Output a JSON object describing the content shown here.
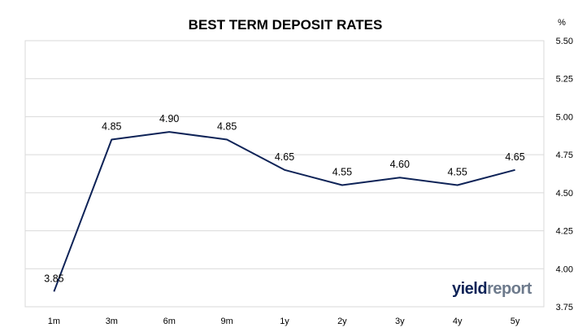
{
  "chart_data": {
    "type": "line",
    "title": "BEST TERM DEPOSIT RATES",
    "unit_label": "%",
    "categories": [
      "1m",
      "3m",
      "6m",
      "9m",
      "1y",
      "2y",
      "3y",
      "4y",
      "5y"
    ],
    "values": [
      3.85,
      4.85,
      4.9,
      4.85,
      4.65,
      4.55,
      4.6,
      4.55,
      4.65
    ],
    "data_labels": [
      "3.85",
      "4.85",
      "4.90",
      "4.85",
      "4.65",
      "4.55",
      "4.60",
      "4.55",
      "4.65"
    ],
    "y_ticks": [
      "5.50",
      "5.25",
      "5.00",
      "4.75",
      "4.50",
      "4.25",
      "4.00",
      "3.75"
    ],
    "y_tick_values": [
      5.5,
      5.25,
      5.0,
      4.75,
      4.5,
      4.25,
      4.0,
      3.75
    ],
    "ylim": [
      3.75,
      5.5
    ],
    "y_axis_side": "right",
    "grid": true,
    "line_color": "#0e2357"
  },
  "logo": {
    "part1": "yield",
    "part2": "report",
    "color1": "#0e2357",
    "color2": "#6d7a8c"
  }
}
